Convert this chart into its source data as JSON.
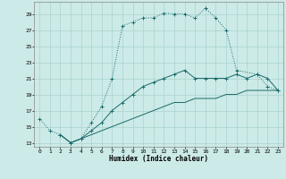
{
  "xlabel": "Humidex (Indice chaleur)",
  "bg_color": "#cceae7",
  "grid_color": "#aad4d0",
  "line_color": "#1a6b6b",
  "xlim": [
    -0.5,
    23.5
  ],
  "ylim": [
    12.5,
    30.5
  ],
  "xticks": [
    0,
    1,
    2,
    3,
    4,
    5,
    6,
    7,
    8,
    9,
    10,
    11,
    12,
    13,
    14,
    15,
    16,
    17,
    18,
    19,
    20,
    21,
    22,
    23
  ],
  "yticks": [
    13,
    15,
    17,
    19,
    21,
    23,
    25,
    27,
    29
  ],
  "line1_x": [
    0,
    1,
    2,
    3,
    4,
    5,
    6,
    7,
    8,
    9,
    10,
    11,
    12,
    13,
    14,
    15,
    16,
    17,
    18,
    19,
    21,
    22,
    23
  ],
  "line1_y": [
    16,
    14.5,
    14,
    13,
    13.5,
    15.5,
    17.5,
    21,
    27.5,
    28,
    28.5,
    28.5,
    29.1,
    29,
    29,
    28.5,
    29.7,
    28.5,
    27,
    22,
    21.5,
    20,
    19.5
  ],
  "line2_x": [
    2,
    3,
    4,
    5,
    6,
    7,
    8,
    9,
    10,
    11,
    12,
    13,
    14,
    15,
    16,
    17,
    18,
    19,
    20,
    21,
    22,
    23
  ],
  "line2_y": [
    14,
    13,
    13.5,
    14.5,
    15.5,
    17,
    18,
    19,
    20,
    20.5,
    21,
    21.5,
    22,
    21,
    21,
    21,
    21,
    21.5,
    21,
    21.5,
    21,
    19.5
  ],
  "line3_x": [
    2,
    3,
    4,
    5,
    6,
    7,
    8,
    9,
    10,
    11,
    12,
    13,
    14,
    15,
    16,
    17,
    18,
    19,
    20,
    21,
    22,
    23
  ],
  "line3_y": [
    14,
    13,
    13.5,
    14,
    14.5,
    15,
    15.5,
    16,
    16.5,
    17,
    17.5,
    18,
    18,
    18.5,
    18.5,
    18.5,
    19,
    19,
    19.5,
    19.5,
    19.5,
    19.5
  ]
}
